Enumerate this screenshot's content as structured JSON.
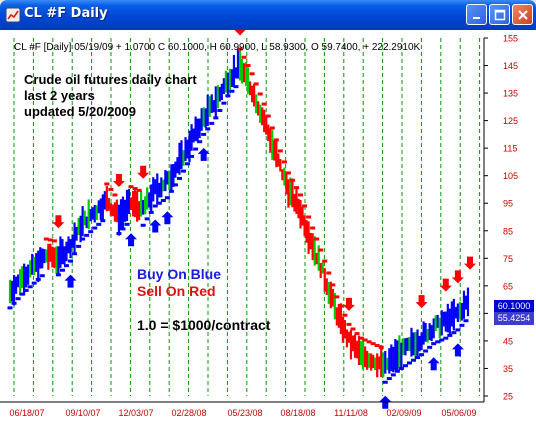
{
  "window": {
    "title": "CL #F Daily",
    "icon": "chart-app-icon",
    "buttons": {
      "minimize": "minimize-icon",
      "maximize": "maximize-icon",
      "close": "close-icon"
    }
  },
  "chart": {
    "status_line": "CL #F [Daily] 05/19/09 + 1.0700 C 60.1000, H 60.9900, L 58.9300, O 59.7400, + 222.2910K",
    "description": [
      "Crude oil futures daily chart",
      "last 2 years",
      "updated 5/20/2009"
    ],
    "buy_note": "Buy On Blue",
    "sell_note": "Sell On Red",
    "contract_note": "1.0 = $1000/contract",
    "last_price": "60.1000",
    "stop_price": "55.4254",
    "colors": {
      "buy": "#0000ff",
      "sell": "#ff0000",
      "neutral": "#00cc00",
      "grid": "#009900",
      "axis_text": "#cc0000"
    }
  },
  "chart_data": {
    "type": "line",
    "ylim": [
      25,
      155
    ],
    "y_ticks": [
      "155",
      "145",
      "135",
      "125",
      "115",
      "105",
      "95",
      "85",
      "75",
      "65",
      "55",
      "45",
      "35",
      "25"
    ],
    "x_tick_labels": [
      "06/18/07",
      "09/10/07",
      "12/03/07",
      "02/28/08",
      "05/23/08",
      "08/18/08",
      "11/11/08",
      "02/09/09",
      "05/06/09"
    ],
    "series": [
      {
        "values": [
          63,
          68,
          72,
          76,
          75,
          80,
          88,
          92,
          96,
          90,
          95,
          93,
          100,
          103,
          110,
          118,
          126,
          132,
          140,
          145,
          136,
          125,
          112,
          100,
          92,
          80,
          68,
          55,
          45,
          40,
          38,
          36,
          40,
          43,
          46,
          50,
          52,
          55,
          60
        ]
      }
    ],
    "signals": {
      "sell_arrows": 9,
      "buy_arrows": 8
    }
  }
}
